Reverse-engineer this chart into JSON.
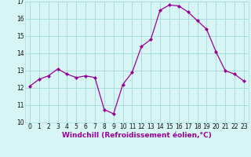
{
  "x": [
    0,
    1,
    2,
    3,
    4,
    5,
    6,
    7,
    8,
    9,
    10,
    11,
    12,
    13,
    14,
    15,
    16,
    17,
    18,
    19,
    20,
    21,
    22,
    23
  ],
  "y": [
    12.1,
    12.5,
    12.7,
    13.1,
    12.8,
    12.6,
    12.7,
    12.6,
    10.75,
    10.5,
    12.2,
    12.9,
    14.4,
    14.8,
    16.5,
    16.8,
    16.75,
    16.4,
    15.9,
    15.4,
    14.1,
    13.0,
    12.8,
    12.4
  ],
  "line_color": "#990099",
  "marker": "D",
  "marker_size": 2.0,
  "bg_color": "#d8f5f5",
  "grid_color": "#aadddd",
  "xlabel": "Windchill (Refroidissement éolien,°C)",
  "ylim": [
    10,
    17
  ],
  "xlim": [
    -0.5,
    23.5
  ],
  "yticks": [
    10,
    11,
    12,
    13,
    14,
    15,
    16,
    17
  ],
  "xticks": [
    0,
    1,
    2,
    3,
    4,
    5,
    6,
    7,
    8,
    9,
    10,
    11,
    12,
    13,
    14,
    15,
    16,
    17,
    18,
    19,
    20,
    21,
    22,
    23
  ],
  "tick_fontsize": 5.5,
  "xlabel_fontsize": 6.5
}
